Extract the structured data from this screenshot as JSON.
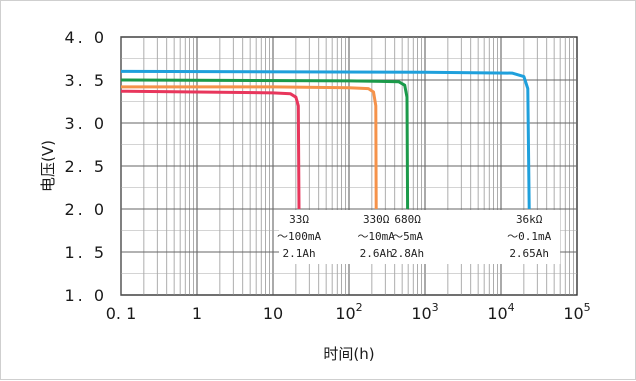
{
  "chart_data": {
    "type": "line",
    "xscale": "log",
    "xlim": [
      0.1,
      100000
    ],
    "ylim": [
      1.0,
      4.0
    ],
    "xlabel": "时间(h)",
    "ylabel": "电压(V)",
    "grid": true,
    "y_ticks": [
      "1. 0",
      "1. 5",
      "2. 0",
      "2. 5",
      "3. 0",
      "3. 5",
      "4. 0"
    ],
    "x_ticks": [
      {
        "value": 0.1,
        "base": "0. 1",
        "exp": ""
      },
      {
        "value": 1,
        "base": "1",
        "exp": ""
      },
      {
        "value": 10,
        "base": "10",
        "exp": ""
      },
      {
        "value": 100,
        "base": "10",
        "exp": "2"
      },
      {
        "value": 1000,
        "base": "10",
        "exp": "3"
      },
      {
        "value": 10000,
        "base": "10",
        "exp": "4"
      },
      {
        "value": 100000,
        "base": "10",
        "exp": "5"
      }
    ],
    "series": [
      {
        "color": "#e8365c",
        "points": [
          [
            0.1,
            3.37
          ],
          [
            1,
            3.36
          ],
          [
            10,
            3.35
          ],
          [
            17,
            3.34
          ],
          [
            20,
            3.3
          ],
          [
            21.5,
            3.2
          ],
          [
            22,
            2.0
          ]
        ],
        "annotation": {
          "at_x": 22,
          "lines": [
            "33Ω",
            "～100mA",
            "2.1Ah"
          ]
        }
      },
      {
        "color": "#f5924a",
        "points": [
          [
            0.1,
            3.42
          ],
          [
            10,
            3.42
          ],
          [
            100,
            3.41
          ],
          [
            180,
            3.4
          ],
          [
            210,
            3.36
          ],
          [
            225,
            3.2
          ],
          [
            228,
            2.0
          ]
        ],
        "annotation": {
          "at_x": 228,
          "lines": [
            "330Ω",
            "～10mA",
            "2.6Ah"
          ]
        }
      },
      {
        "color": "#1b9a4a",
        "points": [
          [
            0.1,
            3.5
          ],
          [
            100,
            3.49
          ],
          [
            450,
            3.48
          ],
          [
            540,
            3.44
          ],
          [
            580,
            3.3
          ],
          [
            590,
            2.0
          ]
        ],
        "annotation": {
          "at_x": 590,
          "lines": [
            "680Ω",
            "～5mA",
            "2.8Ah"
          ]
        }
      },
      {
        "color": "#1fa0dc",
        "points": [
          [
            0.1,
            3.6
          ],
          [
            1000,
            3.59
          ],
          [
            14000,
            3.58
          ],
          [
            20000,
            3.54
          ],
          [
            22500,
            3.4
          ],
          [
            23500,
            2.0
          ]
        ],
        "annotation": {
          "at_x": 23500,
          "lines": [
            "36kΩ",
            "～0.1mA",
            "2.65Ah"
          ]
        }
      }
    ]
  }
}
